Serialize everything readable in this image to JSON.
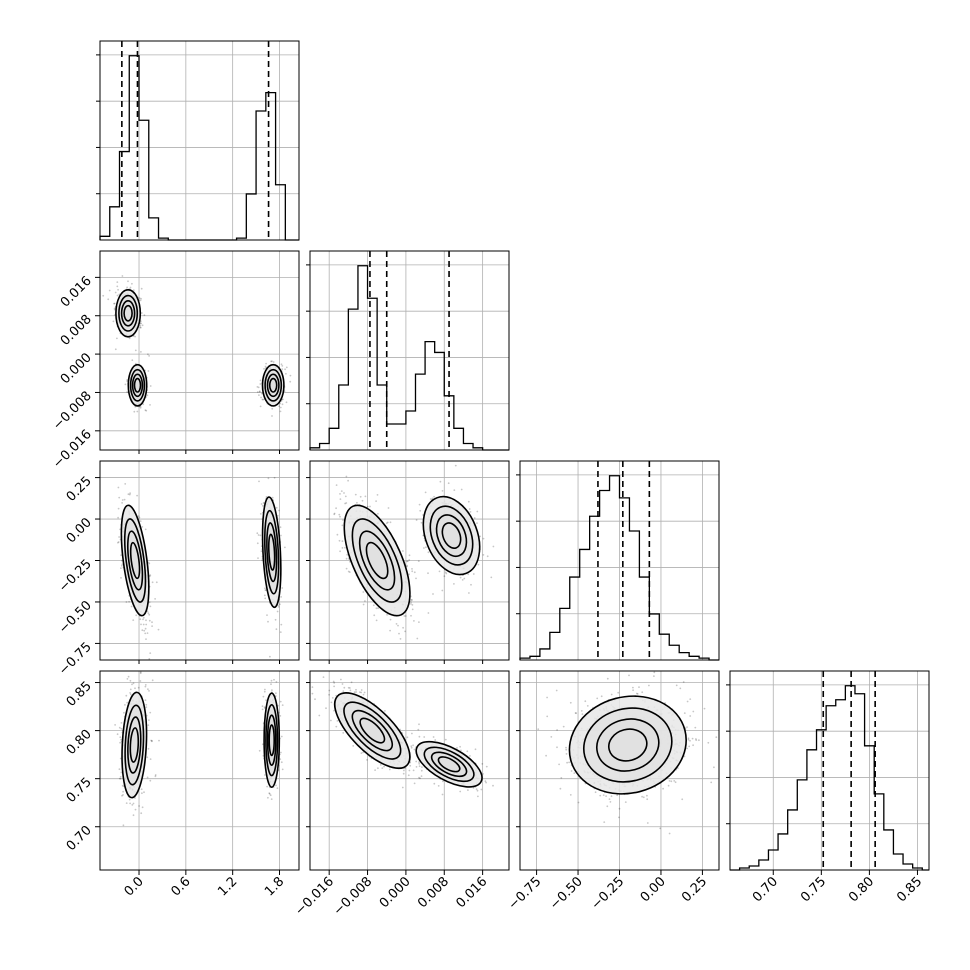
{
  "chart_data": {
    "type": "corner",
    "grid": true,
    "colors": {
      "ink": "#000000",
      "grid": "#b0b0b0",
      "background": "#ffffff"
    },
    "parameters": [
      {
        "range": [
          -0.5,
          2.05
        ],
        "ticks": [
          0.0,
          0.6,
          1.2,
          1.8
        ],
        "tick_labels": [
          "0.0",
          "0.6",
          "1.2",
          "1.8"
        ],
        "quantiles": [
          -0.22,
          -0.02,
          1.66
        ],
        "hist": {
          "bins": [
            -0.5,
            -0.375,
            -0.25,
            -0.125,
            0.0,
            0.125,
            0.25,
            0.375,
            0.5,
            0.625,
            0.75,
            0.875,
            1.0,
            1.125,
            1.25,
            1.375,
            1.5,
            1.625,
            1.75,
            1.875,
            2.05
          ],
          "counts": [
            2,
            18,
            48,
            100,
            65,
            12,
            1,
            0,
            0,
            0,
            0,
            0,
            0,
            0,
            1,
            25,
            70,
            80,
            30,
            0
          ]
        },
        "modes": [
          {
            "weight": 0.6,
            "mean": -0.08,
            "sd": 0.08
          },
          {
            "weight": 0.4,
            "mean": 1.7,
            "sd": 0.07
          }
        ]
      },
      {
        "range": [
          -0.02,
          0.0215
        ],
        "ticks": [
          -0.016,
          -0.008,
          0.0,
          0.008,
          0.016
        ],
        "tick_labels": [
          "−0.016",
          "−0.008",
          "0.000",
          "0.008",
          "0.016"
        ],
        "quantiles": [
          -0.0075,
          -0.004,
          0.009
        ],
        "hist": {
          "bins": [
            -0.02,
            -0.018,
            -0.016,
            -0.014,
            -0.012,
            -0.01,
            -0.008,
            -0.006,
            -0.004,
            -0.002,
            0.0,
            0.002,
            0.004,
            0.006,
            0.008,
            0.01,
            0.012,
            0.014,
            0.016,
            0.018,
            0.0215
          ],
          "counts": [
            1,
            3,
            10,
            30,
            65,
            85,
            70,
            30,
            12,
            12,
            18,
            35,
            50,
            45,
            25,
            10,
            3,
            1,
            0,
            0
          ]
        },
        "modes": [
          {
            "weight": 0.6,
            "mean": -0.005,
            "sd": 0.002
          },
          {
            "weight": 0.4,
            "mean": 0.009,
            "sd": 0.0025
          }
        ]
      },
      {
        "range": [
          -0.85,
          0.35
        ],
        "ticks": [
          -0.75,
          -0.5,
          -0.25,
          0.0,
          0.25
        ],
        "tick_labels": [
          "−0.75",
          "−0.50",
          "−0.25",
          "0.00",
          "0.25"
        ],
        "quantiles": [
          -0.38,
          -0.23,
          -0.07
        ],
        "hist": {
          "bins": [
            -0.85,
            -0.79,
            -0.73,
            -0.67,
            -0.61,
            -0.55,
            -0.49,
            -0.43,
            -0.37,
            -0.31,
            -0.25,
            -0.19,
            -0.13,
            -0.07,
            -0.01,
            0.05,
            0.11,
            0.17,
            0.23,
            0.29,
            0.35
          ],
          "counts": [
            1,
            2,
            6,
            15,
            28,
            45,
            60,
            78,
            92,
            100,
            88,
            70,
            45,
            25,
            14,
            8,
            4,
            2,
            1,
            0
          ]
        },
        "modes": [
          {
            "weight": 1.0,
            "mean": -0.22,
            "sd": 0.17
          }
        ]
      },
      {
        "range": [
          0.655,
          0.862
        ],
        "ticks": [
          0.7,
          0.75,
          0.8,
          0.85
        ],
        "tick_labels": [
          "0.70",
          "0.75",
          "0.80",
          "0.85"
        ],
        "quantiles": [
          0.752,
          0.781,
          0.806
        ],
        "hist": {
          "bins": [
            0.655,
            0.665,
            0.675,
            0.685,
            0.695,
            0.705,
            0.715,
            0.725,
            0.735,
            0.745,
            0.755,
            0.765,
            0.775,
            0.785,
            0.795,
            0.805,
            0.815,
            0.825,
            0.835,
            0.845,
            0.855,
            0.862
          ],
          "counts": [
            0,
            1,
            2,
            5,
            10,
            18,
            30,
            45,
            60,
            70,
            82,
            85,
            92,
            88,
            62,
            38,
            20,
            8,
            3,
            1,
            0
          ]
        },
        "modes": [
          {
            "weight": 1.0,
            "mean": 0.785,
            "sd": 0.025
          }
        ]
      }
    ],
    "pairs": [
      {
        "x": 0,
        "y": 1,
        "components": [
          {
            "weight": 0.35,
            "mean": [
              -0.14,
              0.0085
            ],
            "sd": [
              0.08,
              0.0025
            ],
            "corr": 0.0
          },
          {
            "weight": 0.35,
            "mean": -0.02,
            "mean_y": -0.0065,
            "sd": [
              0.06,
              0.0022
            ],
            "corr": 0.0
          },
          {
            "weight": 0.3,
            "mean": 1.72,
            "mean_y": -0.0065,
            "sd": [
              0.07,
              0.0022
            ],
            "corr": 0.0
          }
        ]
      },
      {
        "x": 0,
        "y": 2,
        "components": [
          {
            "weight": 0.6,
            "mean": [
              -0.05,
              -0.25
            ],
            "sd": [
              0.09,
              0.17
            ],
            "corr": -0.5
          },
          {
            "weight": 0.4,
            "mean": [
              1.7,
              -0.2
            ],
            "sd": [
              0.06,
              0.17
            ],
            "corr": -0.3
          }
        ]
      },
      {
        "x": 1,
        "y": 2,
        "components": [
          {
            "weight": 0.6,
            "mean": [
              -0.006,
              -0.25
            ],
            "sd": [
              0.0035,
              0.17
            ],
            "corr": -0.6
          },
          {
            "weight": 0.4,
            "mean": [
              0.0095,
              -0.1
            ],
            "sd": [
              0.003,
              0.12
            ],
            "corr": -0.3
          }
        ]
      },
      {
        "x": 0,
        "y": 3,
        "components": [
          {
            "weight": 0.6,
            "mean": [
              -0.06,
              0.785
            ],
            "sd": [
              0.08,
              0.028
            ],
            "corr": 0.2
          },
          {
            "weight": 0.4,
            "mean": [
              1.7,
              0.79
            ],
            "sd": [
              0.05,
              0.025
            ],
            "corr": 0.0
          }
        ]
      },
      {
        "x": 1,
        "y": 3,
        "components": [
          {
            "weight": 0.6,
            "mean": [
              -0.007,
              0.8
            ],
            "sd": [
              0.004,
              0.02
            ],
            "corr": -0.7
          },
          {
            "weight": 0.4,
            "mean": [
              0.009,
              0.765
            ],
            "sd": [
              0.0035,
              0.012
            ],
            "corr": -0.6
          }
        ]
      },
      {
        "x": 2,
        "y": 3,
        "components": [
          {
            "weight": 1.0,
            "mean": [
              -0.2,
              0.785
            ],
            "sd": [
              0.18,
              0.026
            ],
            "corr": 0.1
          }
        ]
      }
    ],
    "contour_levels": [
      0.2,
      0.45,
      0.7,
      0.88
    ]
  }
}
